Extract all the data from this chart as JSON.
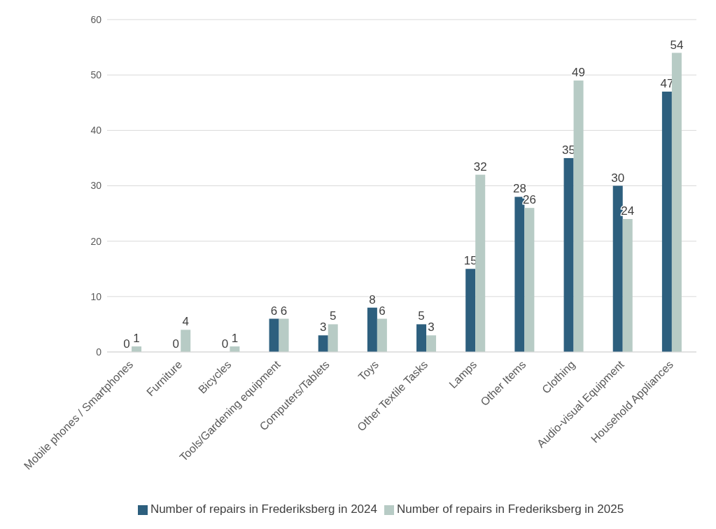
{
  "chart_data": {
    "type": "bar",
    "categories": [
      "Mobile phones / Smartphones",
      "Furniture",
      "Bicycles",
      "Tools/Gardening equipment",
      "Computers/Tablets",
      "Toys",
      "Other Textile Tasks",
      "Lamps",
      "Other Items",
      "Clothing",
      "Audio-visual Equipment",
      "Household Appliances"
    ],
    "series": [
      {
        "name": "Number of repairs in Frederiksberg in 2024",
        "color": "#2d5f7e",
        "values": [
          0,
          0,
          0,
          6,
          3,
          8,
          5,
          15,
          28,
          35,
          30,
          47
        ]
      },
      {
        "name": "Number of repairs in Frederiksberg in 2025",
        "color": "#b7cbc5",
        "values": [
          1,
          4,
          1,
          6,
          5,
          6,
          3,
          32,
          26,
          49,
          24,
          54
        ]
      }
    ],
    "ylim": [
      0,
      60
    ],
    "yticks": [
      0,
      10,
      20,
      30,
      40,
      50,
      60
    ],
    "grid": "y",
    "legend": "bottom",
    "data_labels": true
  }
}
